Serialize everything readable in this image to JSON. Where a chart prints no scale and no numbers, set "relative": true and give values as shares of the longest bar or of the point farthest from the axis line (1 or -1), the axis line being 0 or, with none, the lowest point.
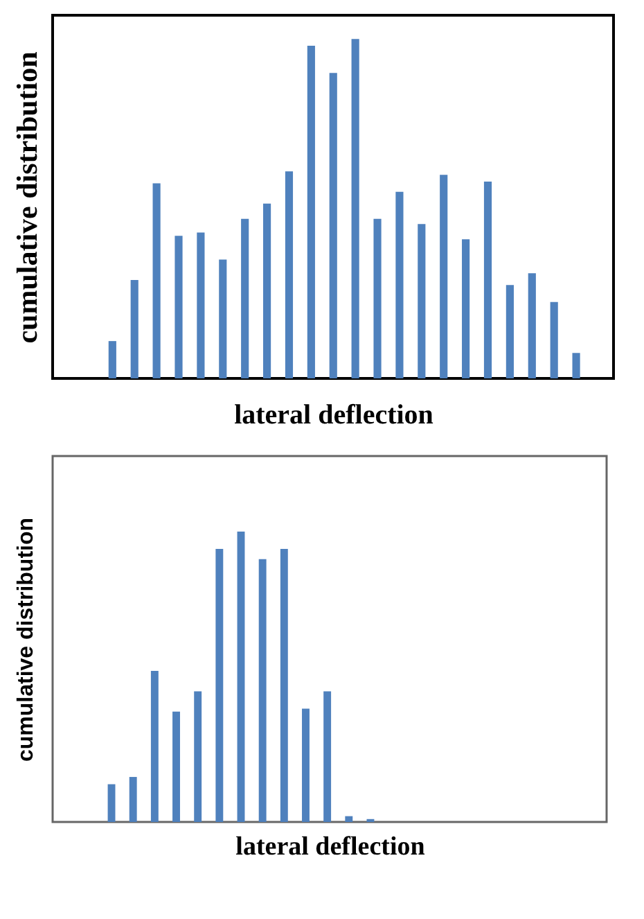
{
  "chart_data": [
    {
      "type": "bar",
      "relative": true,
      "xlabel": "lateral deflection",
      "ylabel": "cumulative  distribution",
      "color": "#4f81bd",
      "categories": [
        null,
        null,
        null,
        null,
        null,
        null,
        null,
        null,
        null,
        null,
        null,
        null,
        null,
        null,
        null,
        null,
        null,
        null,
        null,
        null,
        null,
        null
      ],
      "values": [
        0.11,
        0.29,
        0.575,
        0.42,
        0.43,
        0.35,
        0.47,
        0.515,
        0.61,
        0.98,
        0.9,
        1,
        0.47,
        0.55,
        0.455,
        0.6,
        0.41,
        0.58,
        0.275,
        0.31,
        0.225,
        0.075
      ]
    },
    {
      "type": "bar",
      "relative": true,
      "xlabel": "lateral deflection",
      "ylabel": "cumulative distribution",
      "color": "#4f81bd",
      "categories": [
        null,
        null,
        null,
        null,
        null,
        null,
        null,
        null,
        null,
        null,
        null,
        null,
        null
      ],
      "values": [
        0.13,
        0.155,
        0.52,
        0.38,
        0.45,
        0.94,
        1,
        0.905,
        0.94,
        0.39,
        0.45,
        0.02,
        0.01
      ]
    }
  ]
}
